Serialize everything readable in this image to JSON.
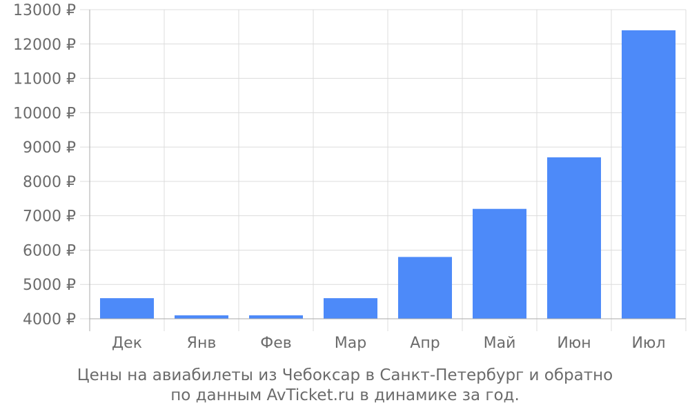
{
  "chart_data": {
    "type": "bar",
    "categories": [
      "Дек",
      "Янв",
      "Фев",
      "Мар",
      "Апр",
      "Май",
      "Июн",
      "Июл"
    ],
    "values": [
      4600,
      4100,
      4100,
      4600,
      5800,
      7200,
      8700,
      12400
    ],
    "ylim": [
      4000,
      13000
    ],
    "yticks": [
      4000,
      5000,
      6000,
      7000,
      8000,
      9000,
      10000,
      11000,
      12000,
      13000
    ],
    "ytick_labels": [
      "4000 ₽",
      "5000 ₽",
      "6000 ₽",
      "7000 ₽",
      "8000 ₽",
      "9000 ₽",
      "10000 ₽",
      "11000 ₽",
      "12000 ₽",
      "13000 ₽"
    ],
    "grid": true,
    "colors": {
      "bar": "#4d8af9",
      "grid": "#dcdcdc",
      "axis": "#aaaaaa",
      "text": "#6b6b6b"
    }
  },
  "caption": {
    "line1": "Цены на авиабилеты из Чебоксар в Санкт-Петербург и обратно",
    "line2": "по данным AvTicket.ru в динамике за год."
  }
}
